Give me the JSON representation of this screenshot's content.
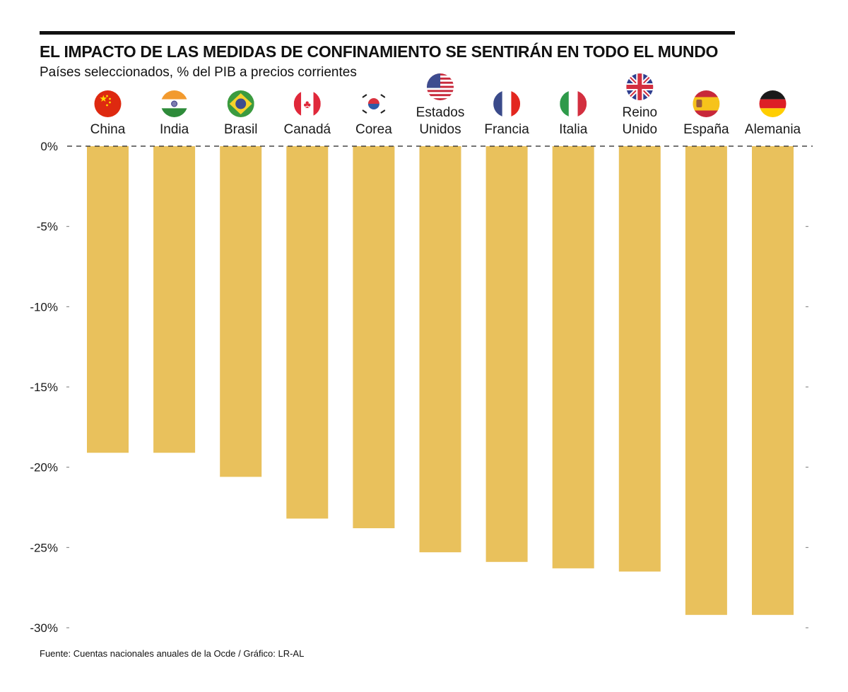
{
  "header": {
    "title": "EL IMPACTO DE LAS MEDIDAS DE CONFINAMIENTO SE SENTIRÁN EN TODO EL MUNDO",
    "subtitle": "Países seleccionados, % del PIB a precios corrientes"
  },
  "footer": {
    "source": "Fuente: Cuentas nacionales anuales de la Ocde / Gráfico: LR-AL"
  },
  "colors": {
    "bar": "#E9C15C",
    "text": "#1a1a1a",
    "rule": "#111111"
  },
  "chart_data": {
    "type": "bar",
    "title": "EL IMPACTO DE LAS MEDIDAS DE CONFINAMIENTO SE SENTIRÁN EN TODO EL MUNDO",
    "subtitle": "Países seleccionados, % del PIB a precios corrientes",
    "xlabel": "",
    "ylabel": "",
    "categories": [
      "China",
      "India",
      "Brasil",
      "Canadá",
      "Corea",
      "Estados Unidos",
      "Francia",
      "Italia",
      "Reino Unido",
      "España",
      "Alemania"
    ],
    "category_label_lines": [
      [
        "China"
      ],
      [
        "India"
      ],
      [
        "Brasil"
      ],
      [
        "Canadá"
      ],
      [
        "Corea"
      ],
      [
        "Estados",
        "Unidos"
      ],
      [
        "Francia"
      ],
      [
        "Italia"
      ],
      [
        "Reino",
        "Unido"
      ],
      [
        "España"
      ],
      [
        "Alemania"
      ]
    ],
    "flags": [
      "china-flag",
      "india-flag",
      "brazil-flag",
      "canada-flag",
      "korea-flag",
      "usa-flag",
      "france-flag",
      "italy-flag",
      "uk-flag",
      "spain-flag",
      "germany-flag"
    ],
    "values": [
      -19.1,
      -19.1,
      -20.6,
      -23.2,
      -23.8,
      -25.3,
      -25.9,
      -26.3,
      -26.5,
      -29.2,
      -29.2
    ],
    "ylim": [
      -30,
      0
    ],
    "yticks": [
      0,
      -5,
      -10,
      -15,
      -20,
      -25,
      -30
    ],
    "ytick_labels": [
      "0%",
      "-5%",
      "-10%",
      "-15%",
      "-20%",
      "-25%",
      "-30%"
    ],
    "zero_line": "dashed",
    "grid": false,
    "legend": "none"
  }
}
